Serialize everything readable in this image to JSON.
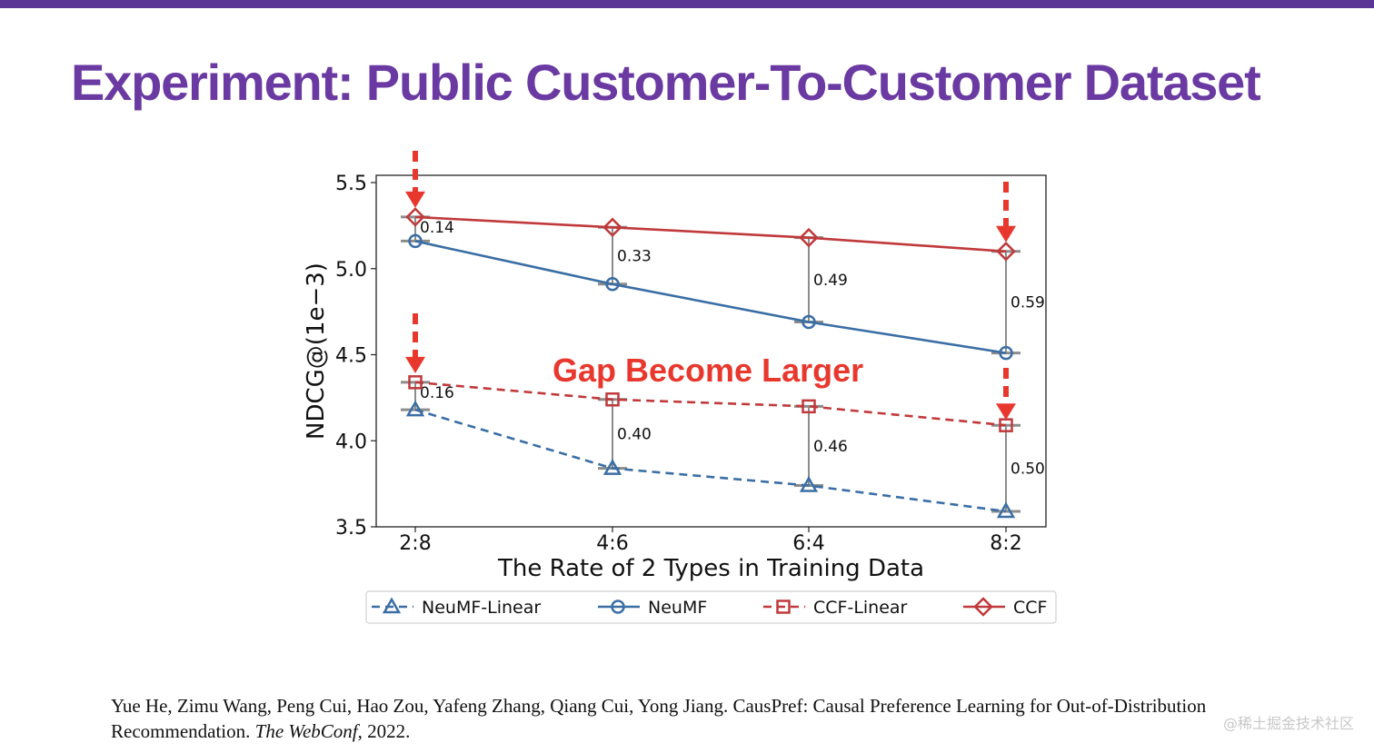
{
  "slide": {
    "title": "Experiment: Public Customer-To-Customer Dataset",
    "accent_color": "#6a3aa2",
    "citation_authors": "Yue He, Zimu Wang, Peng Cui, Hao Zou, Yafeng Zhang, Qiang Cui, Yong Jiang. CausPref: Causal Preference Learning for Out-of-Distribution Recommendation.",
    "citation_venue": "The WebConf",
    "citation_year": ", 2022.",
    "watermark": "@稀土掘金技术社区"
  },
  "chart_data": {
    "type": "line",
    "title": "",
    "xlabel": "The Rate of 2 Types in Training Data",
    "ylabel": "NDCG@(1e−3)",
    "categories": [
      "2:8",
      "4:6",
      "6:4",
      "8:2"
    ],
    "ylim": [
      3.5,
      5.5
    ],
    "yticks": [
      3.5,
      4.0,
      4.5,
      5.0,
      5.5
    ],
    "grid": false,
    "legend_position": "bottom",
    "series": [
      {
        "name": "NeuMF-Linear",
        "values": [
          4.18,
          3.84,
          3.74,
          3.59
        ],
        "color": "#3a6ea5",
        "dash": true,
        "marker": "triangle"
      },
      {
        "name": "NeuMF",
        "values": [
          5.16,
          4.91,
          4.69,
          4.51
        ],
        "color": "#3a6ea5",
        "dash": false,
        "marker": "circle"
      },
      {
        "name": "CCF-Linear",
        "values": [
          4.34,
          4.24,
          4.2,
          4.09
        ],
        "color": "#c0393b",
        "dash": true,
        "marker": "square"
      },
      {
        "name": "CCF",
        "values": [
          5.3,
          5.24,
          5.18,
          5.1
        ],
        "color": "#c0393b",
        "dash": false,
        "marker": "diamond"
      }
    ],
    "gaps": [
      {
        "upper_series": "CCF",
        "lower_series": "NeuMF",
        "labels": [
          "0.14",
          "0.33",
          "0.49",
          "0.59"
        ]
      },
      {
        "upper_series": "CCF-Linear",
        "lower_series": "NeuMF-Linear",
        "labels": [
          "0.16",
          "0.40",
          "0.46",
          "0.50"
        ]
      }
    ],
    "annotations": [
      {
        "text": "Gap Become Larger",
        "color": "#e8382e"
      }
    ],
    "arrow_color": "#e8382e"
  }
}
